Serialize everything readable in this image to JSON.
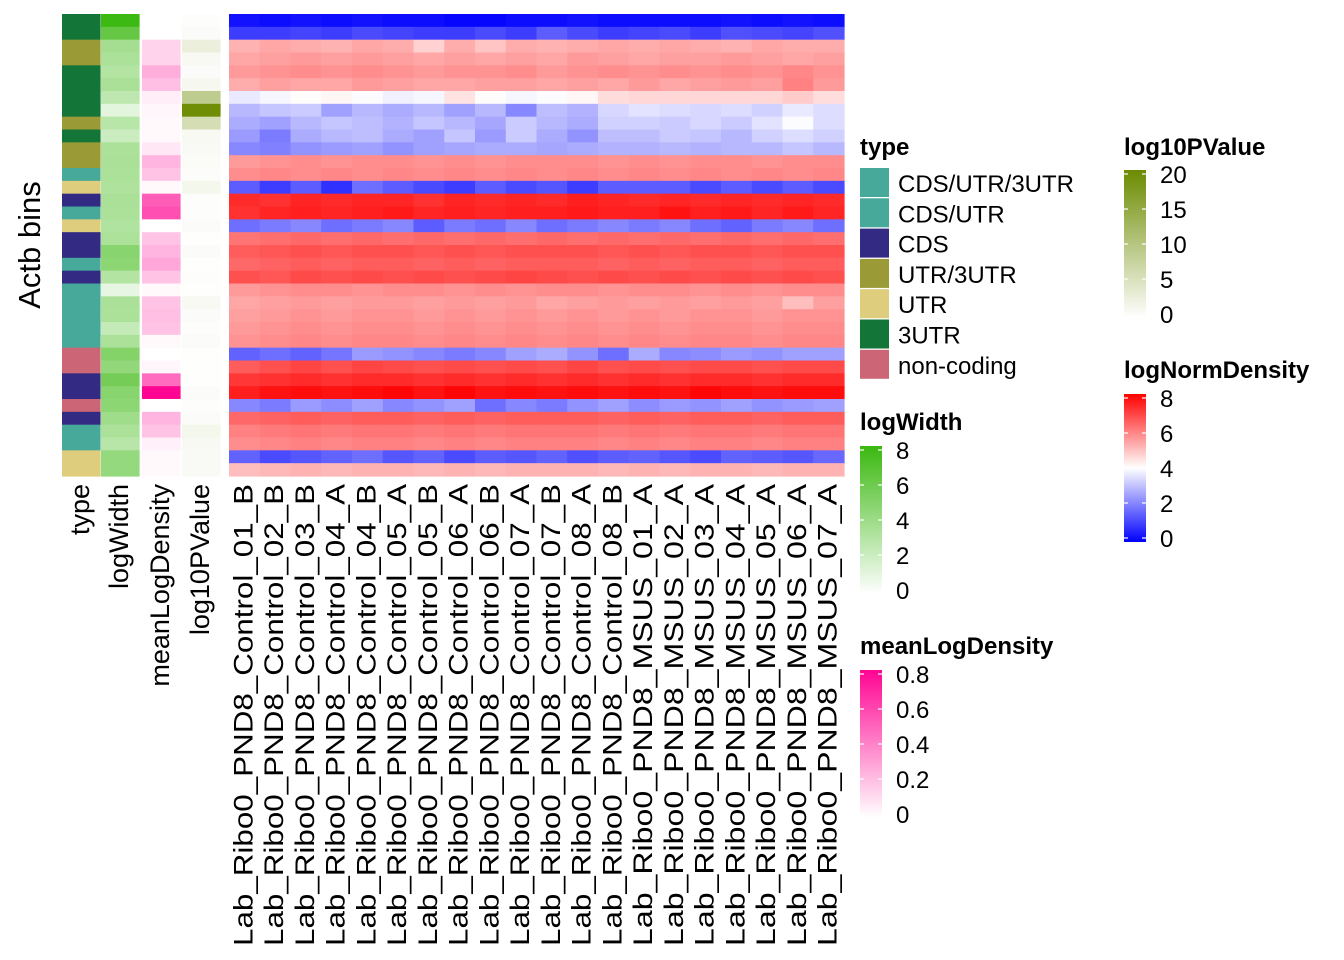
{
  "chart_data": {
    "type": "heatmap",
    "ylabel": "Actb bins",
    "annotation_columns": [
      "type",
      "logWidth",
      "meanLogDensity",
      "log10PValue"
    ],
    "sample_columns": [
      "Lab_Ribo0_PND8_Control_01_B",
      "Lab_Ribo0_PND8_Control_02_B",
      "Lab_Ribo0_PND8_Control_03_B",
      "Lab_Ribo0_PND8_Control_04_A",
      "Lab_Ribo0_PND8_Control_04_B",
      "Lab_Ribo0_PND8_Control_05_A",
      "Lab_Ribo0_PND8_Control_05_B",
      "Lab_Ribo0_PND8_Control_06_A",
      "Lab_Ribo0_PND8_Control_06_B",
      "Lab_Ribo0_PND8_Control_07_A",
      "Lab_Ribo0_PND8_Control_07_B",
      "Lab_Ribo0_PND8_Control_08_A",
      "Lab_Ribo0_PND8_Control_08_B",
      "Lab_Ribo0_PND8_MSUS_01_A",
      "Lab_Ribo0_PND8_MSUS_02_A",
      "Lab_Ribo0_PND8_MSUS_03_A",
      "Lab_Ribo0_PND8_MSUS_04_A",
      "Lab_Ribo0_PND8_MSUS_05_A",
      "Lab_Ribo0_PND8_MSUS_06_A",
      "Lab_Ribo0_PND8_MSUS_07_A"
    ],
    "type_categories": [
      "CDS/UTR/3UTR",
      "CDS/UTR",
      "CDS",
      "UTR/3UTR",
      "UTR",
      "3UTR",
      "non-coding"
    ],
    "rows": [
      {
        "type": "3UTR",
        "logWidth": 8.2,
        "meanLogDensity": 0.0,
        "log10PValue": 0.3,
        "values": [
          0.3,
          0.2,
          0.3,
          0.2,
          0.3,
          0.2,
          0.2,
          0.1,
          0.1,
          0.2,
          0.2,
          0.3,
          0.2,
          0.2,
          0.2,
          0.2,
          0.3,
          0.2,
          0.3,
          0.2
        ]
      },
      {
        "type": "3UTR",
        "logWidth": 6.5,
        "meanLogDensity": 0.0,
        "log10PValue": 0.5,
        "values": [
          1.0,
          1.0,
          1.1,
          1.0,
          1.2,
          1.1,
          1.0,
          1.0,
          1.2,
          1.0,
          1.5,
          1.2,
          1.0,
          1.1,
          1.2,
          1.0,
          1.3,
          1.2,
          1.1,
          1.3
        ]
      },
      {
        "type": "UTR/3UTR",
        "logWidth": 3.8,
        "meanLogDensity": 0.15,
        "log10PValue": 2.8,
        "values": [
          5.4,
          5.6,
          5.5,
          5.4,
          5.6,
          5.5,
          4.9,
          5.5,
          5.1,
          5.5,
          5.4,
          5.5,
          5.6,
          5.5,
          5.6,
          5.5,
          5.4,
          5.6,
          5.5,
          5.5
        ]
      },
      {
        "type": "UTR/3UTR",
        "logWidth": 3.5,
        "meanLogDensity": 0.15,
        "log10PValue": 1.0,
        "values": [
          5.6,
          5.7,
          5.8,
          5.7,
          5.8,
          5.7,
          5.6,
          5.7,
          5.6,
          5.7,
          5.6,
          5.8,
          5.7,
          5.6,
          5.7,
          5.7,
          5.8,
          5.7,
          5.6,
          5.7
        ]
      },
      {
        "type": "3UTR",
        "logWidth": 3.2,
        "meanLogDensity": 0.28,
        "log10PValue": 0.5,
        "values": [
          5.8,
          5.9,
          6.0,
          5.9,
          6.0,
          5.9,
          5.8,
          5.9,
          5.9,
          6.0,
          5.8,
          5.9,
          6.0,
          5.9,
          6.0,
          5.9,
          6.0,
          5.9,
          6.1,
          5.9
        ]
      },
      {
        "type": "3UTR",
        "logWidth": 3.6,
        "meanLogDensity": 0.22,
        "log10PValue": 1.2,
        "values": [
          5.5,
          5.7,
          5.6,
          5.6,
          5.8,
          5.7,
          5.6,
          5.6,
          5.7,
          5.7,
          5.6,
          5.7,
          5.6,
          5.8,
          5.6,
          5.7,
          5.8,
          5.7,
          6.2,
          5.8
        ]
      },
      {
        "type": "3UTR",
        "logWidth": 2.8,
        "meanLogDensity": 0.06,
        "log10PValue": 9.0,
        "values": [
          3.8,
          4.0,
          4.2,
          4.3,
          4.1,
          3.9,
          4.0,
          4.6,
          4.2,
          4.0,
          4.1,
          4.3,
          4.7,
          4.8,
          4.8,
          4.8,
          4.8,
          4.8,
          5.0,
          4.7
        ]
      },
      {
        "type": "3UTR",
        "logWidth": 1.2,
        "meanLogDensity": 0.03,
        "log10PValue": 20.0,
        "values": [
          3.0,
          3.2,
          3.3,
          2.6,
          3.0,
          2.8,
          3.0,
          2.6,
          3.0,
          2.2,
          3.1,
          2.9,
          3.5,
          3.7,
          3.6,
          3.5,
          3.6,
          3.4,
          3.8,
          3.6
        ]
      },
      {
        "type": "UTR/3UTR",
        "logWidth": 3.0,
        "meanLogDensity": 0.02,
        "log10PValue": 6.0,
        "values": [
          2.8,
          2.6,
          3.0,
          3.2,
          3.1,
          2.9,
          3.2,
          3.0,
          2.7,
          3.3,
          3.0,
          2.8,
          3.4,
          3.4,
          3.3,
          3.5,
          3.3,
          3.7,
          4.1,
          3.6
        ]
      },
      {
        "type": "3UTR",
        "logWidth": 2.2,
        "meanLogDensity": 0.02,
        "log10PValue": 1.0,
        "values": [
          2.5,
          2.0,
          2.8,
          3.0,
          3.1,
          2.8,
          2.6,
          3.2,
          2.5,
          3.3,
          2.8,
          2.4,
          3.1,
          3.1,
          3.3,
          3.2,
          3.0,
          3.4,
          3.6,
          3.4
        ]
      },
      {
        "type": "UTR/3UTR",
        "logWidth": 3.5,
        "meanLogDensity": 0.08,
        "log10PValue": 0.8,
        "values": [
          2.2,
          2.1,
          2.4,
          2.5,
          2.6,
          2.4,
          2.6,
          2.7,
          2.8,
          2.8,
          2.7,
          2.8,
          2.9,
          2.9,
          3.0,
          2.9,
          3.0,
          3.0,
          3.2,
          3.0
        ]
      },
      {
        "type": "UTR/3UTR",
        "logWidth": 3.6,
        "meanLogDensity": 0.25,
        "log10PValue": 0.6,
        "values": [
          5.8,
          5.9,
          6.0,
          5.9,
          6.0,
          6.0,
          5.9,
          6.0,
          5.9,
          6.0,
          6.0,
          6.0,
          5.9,
          6.0,
          5.9,
          6.0,
          6.0,
          5.9,
          6.0,
          6.0
        ]
      },
      {
        "type": "CDS/UTR",
        "logWidth": 3.5,
        "meanLogDensity": 0.2,
        "log10PValue": 0.4,
        "values": [
          6.0,
          6.1,
          6.0,
          6.1,
          6.0,
          6.1,
          6.0,
          6.1,
          6.0,
          6.1,
          6.0,
          6.1,
          6.0,
          6.1,
          6.0,
          6.1,
          6.0,
          6.1,
          6.0,
          6.1
        ]
      },
      {
        "type": "UTR",
        "logWidth": 3.4,
        "meanLogDensity": 0.02,
        "log10PValue": 1.5,
        "values": [
          1.5,
          1.0,
          1.5,
          0.8,
          1.8,
          1.5,
          1.2,
          1.0,
          1.5,
          1.2,
          1.4,
          1.0,
          1.5,
          1.5,
          1.5,
          1.2,
          1.5,
          1.2,
          1.5,
          1.2
        ]
      },
      {
        "type": "CDS",
        "logWidth": 3.6,
        "meanLogDensity": 0.55,
        "log10PValue": 0.3,
        "values": [
          7.6,
          7.5,
          7.7,
          7.6,
          7.7,
          7.7,
          7.5,
          7.7,
          7.6,
          7.7,
          7.6,
          7.8,
          7.7,
          7.6,
          7.7,
          7.6,
          7.7,
          7.6,
          7.7,
          7.6
        ]
      },
      {
        "type": "CDS/UTR",
        "logWidth": 3.5,
        "meanLogDensity": 0.6,
        "log10PValue": 0.3,
        "values": [
          7.5,
          7.7,
          7.8,
          7.7,
          7.8,
          7.9,
          7.7,
          7.8,
          7.7,
          7.8,
          7.8,
          7.9,
          7.8,
          7.8,
          8.0,
          7.8,
          7.9,
          7.7,
          7.9,
          7.7
        ]
      },
      {
        "type": "UTR",
        "logWidth": 3.3,
        "meanLogDensity": 0.0,
        "log10PValue": 0.5,
        "values": [
          1.8,
          2.0,
          2.2,
          1.8,
          2.0,
          2.2,
          1.5,
          2.0,
          1.8,
          2.2,
          1.8,
          2.0,
          2.2,
          2.0,
          2.2,
          1.8,
          1.6,
          2.0,
          2.2,
          1.8
        ]
      },
      {
        "type": "CDS",
        "logWidth": 3.5,
        "meanLogDensity": 0.2,
        "log10PValue": 0.2,
        "values": [
          6.4,
          6.5,
          6.6,
          6.5,
          6.6,
          6.5,
          6.6,
          6.5,
          6.6,
          6.5,
          6.6,
          6.5,
          6.6,
          6.5,
          6.6,
          6.5,
          6.6,
          6.5,
          6.6,
          6.5
        ]
      },
      {
        "type": "CDS",
        "logWidth": 5.0,
        "meanLogDensity": 0.25,
        "log10PValue": 0.5,
        "values": [
          6.8,
          6.9,
          7.0,
          6.9,
          7.0,
          7.0,
          6.9,
          7.0,
          6.9,
          7.0,
          7.0,
          7.0,
          6.9,
          7.0,
          6.9,
          7.0,
          7.0,
          6.9,
          7.0,
          7.0
        ]
      },
      {
        "type": "CDS/UTR/3UTR",
        "logWidth": 4.8,
        "meanLogDensity": 0.3,
        "log10PValue": 0.2,
        "values": [
          6.6,
          6.7,
          6.8,
          6.7,
          6.8,
          6.8,
          6.7,
          6.8,
          6.7,
          6.8,
          6.8,
          6.8,
          6.7,
          6.8,
          6.7,
          6.8,
          6.8,
          6.7,
          6.8,
          6.8
        ]
      },
      {
        "type": "CDS",
        "logWidth": 3.2,
        "meanLogDensity": 0.2,
        "log10PValue": 0.3,
        "values": [
          7.0,
          6.9,
          7.1,
          7.0,
          7.1,
          7.0,
          7.1,
          7.0,
          7.1,
          7.2,
          7.1,
          7.0,
          7.1,
          7.0,
          7.1,
          7.0,
          7.1,
          7.0,
          7.1,
          7.0
        ]
      },
      {
        "type": "CDS/UTR/3UTR",
        "logWidth": 1.0,
        "meanLogDensity": 0.02,
        "log10PValue": 0.2,
        "values": [
          5.8,
          5.9,
          6.0,
          6.0,
          5.9,
          6.0,
          6.0,
          5.9,
          6.0,
          5.9,
          6.0,
          6.0,
          5.9,
          6.0,
          6.0,
          5.9,
          6.0,
          5.9,
          6.0,
          6.0
        ]
      },
      {
        "type": "CDS/UTR/3UTR",
        "logWidth": 3.6,
        "meanLogDensity": 0.2,
        "log10PValue": 1.0,
        "values": [
          5.6,
          5.7,
          5.8,
          5.7,
          5.8,
          5.8,
          5.7,
          5.8,
          5.7,
          5.8,
          5.6,
          5.7,
          5.8,
          5.7,
          5.8,
          5.7,
          5.8,
          5.7,
          5.2,
          5.7
        ]
      },
      {
        "type": "CDS/UTR/3UTR",
        "logWidth": 3.5,
        "meanLogDensity": 0.22,
        "log10PValue": 0.5,
        "values": [
          5.7,
          5.8,
          5.9,
          5.8,
          5.9,
          5.9,
          5.8,
          5.9,
          5.8,
          5.9,
          5.8,
          5.9,
          5.8,
          5.9,
          5.8,
          5.9,
          5.9,
          5.8,
          5.9,
          5.9
        ]
      },
      {
        "type": "CDS/UTR/3UTR",
        "logWidth": 2.5,
        "meanLogDensity": 0.2,
        "log10PValue": 0.3,
        "values": [
          5.8,
          5.9,
          6.0,
          5.9,
          6.0,
          6.0,
          5.9,
          6.0,
          5.9,
          6.0,
          5.9,
          6.0,
          5.9,
          6.0,
          5.9,
          6.0,
          6.0,
          5.9,
          6.0,
          6.0
        ]
      },
      {
        "type": "CDS/UTR/3UTR",
        "logWidth": 3.5,
        "meanLogDensity": 0.02,
        "log10PValue": 0.5,
        "values": [
          5.9,
          6.0,
          6.1,
          6.0,
          6.1,
          6.1,
          6.0,
          6.1,
          6.0,
          6.1,
          6.0,
          6.1,
          6.0,
          6.1,
          6.0,
          6.1,
          6.1,
          6.0,
          6.1,
          6.1
        ]
      },
      {
        "type": "non-coding",
        "logWidth": 5.2,
        "meanLogDensity": 0.0,
        "log10PValue": 0.2,
        "values": [
          1.6,
          1.8,
          1.6,
          1.9,
          2.5,
          2.4,
          2.2,
          2.0,
          2.2,
          2.6,
          2.8,
          2.4,
          1.8,
          2.8,
          2.2,
          2.3,
          2.5,
          2.4,
          2.6,
          2.6
        ]
      },
      {
        "type": "non-coding",
        "logWidth": 4.6,
        "meanLogDensity": 0.03,
        "log10PValue": 0.2,
        "values": [
          6.8,
          7.0,
          7.2,
          7.0,
          7.2,
          7.1,
          7.0,
          7.1,
          7.0,
          7.1,
          7.0,
          7.2,
          7.0,
          7.1,
          7.0,
          7.1,
          7.1,
          7.0,
          7.1,
          7.1
        ]
      },
      {
        "type": "CDS",
        "logWidth": 5.8,
        "meanLogDensity": 0.5,
        "log10PValue": 0.2,
        "values": [
          7.4,
          7.5,
          7.6,
          7.5,
          7.6,
          7.6,
          7.5,
          7.6,
          7.5,
          7.6,
          7.5,
          7.6,
          7.5,
          7.6,
          7.5,
          7.6,
          7.6,
          7.5,
          7.6,
          7.6
        ]
      },
      {
        "type": "CDS",
        "logWidth": 5.0,
        "meanLogDensity": 0.85,
        "log10PValue": 0.5,
        "values": [
          7.8,
          8.0,
          8.1,
          8.0,
          8.1,
          8.2,
          8.0,
          8.2,
          8.0,
          8.1,
          8.0,
          8.1,
          8.0,
          8.1,
          8.0,
          8.2,
          8.1,
          8.0,
          8.1,
          8.1
        ]
      },
      {
        "type": "non-coding",
        "logWidth": 4.8,
        "meanLogDensity": 0.0,
        "log10PValue": 0.3,
        "values": [
          2.2,
          2.0,
          2.5,
          2.3,
          2.6,
          2.2,
          2.4,
          2.6,
          1.8,
          2.2,
          2.0,
          2.4,
          2.6,
          2.3,
          2.5,
          2.4,
          2.6,
          2.4,
          2.5,
          2.6
        ]
      },
      {
        "type": "CDS",
        "logWidth": 4.0,
        "meanLogDensity": 0.25,
        "log10PValue": 0.5,
        "values": [
          6.6,
          6.7,
          6.8,
          6.7,
          6.8,
          6.8,
          6.7,
          6.8,
          6.7,
          6.8,
          6.8,
          6.8,
          6.7,
          6.8,
          6.7,
          6.8,
          6.8,
          6.7,
          6.8,
          6.8
        ]
      },
      {
        "type": "CDS/UTR",
        "logWidth": 3.5,
        "meanLogDensity": 0.2,
        "log10PValue": 1.5,
        "values": [
          6.2,
          6.3,
          6.4,
          6.3,
          6.4,
          6.4,
          6.3,
          6.4,
          6.3,
          6.4,
          6.4,
          6.4,
          6.3,
          6.4,
          6.3,
          6.4,
          6.4,
          6.3,
          6.4,
          6.4
        ]
      },
      {
        "type": "CDS/UTR",
        "logWidth": 3.0,
        "meanLogDensity": 0.05,
        "log10PValue": 1.0,
        "values": [
          6.0,
          6.1,
          6.2,
          6.1,
          6.2,
          6.2,
          6.1,
          6.2,
          6.1,
          6.2,
          6.2,
          6.2,
          6.1,
          6.2,
          6.1,
          6.2,
          6.2,
          6.1,
          6.2,
          6.2
        ]
      },
      {
        "type": "UTR",
        "logWidth": 4.5,
        "meanLogDensity": 0.02,
        "log10PValue": 0.8,
        "values": [
          1.6,
          1.2,
          1.4,
          1.6,
          1.8,
          1.4,
          1.6,
          1.2,
          1.5,
          1.4,
          1.6,
          1.3,
          1.5,
          1.6,
          1.4,
          1.2,
          1.6,
          1.5,
          1.4,
          1.7
        ]
      },
      {
        "type": "UTR",
        "logWidth": 4.5,
        "meanLogDensity": 0.02,
        "log10PValue": 0.8,
        "values": [
          5.2,
          5.3,
          5.4,
          5.3,
          5.4,
          5.4,
          5.3,
          5.4,
          5.3,
          5.4,
          5.4,
          5.4,
          5.3,
          5.4,
          5.3,
          5.4,
          5.4,
          5.3,
          5.4,
          5.4
        ]
      }
    ],
    "legends": {
      "type": {
        "title": "type",
        "items": [
          {
            "label": "CDS/UTR/3UTR",
            "color": "#46A99A"
          },
          {
            "label": "CDS/UTR",
            "color": "#46A99A"
          },
          {
            "label": "CDS",
            "color": "#332A84"
          },
          {
            "label": "UTR/3UTR",
            "color": "#9A9A36"
          },
          {
            "label": "UTR",
            "color": "#DDCD7C"
          },
          {
            "label": "3UTR",
            "color": "#137638"
          },
          {
            "label": "non-coding",
            "color": "#CC6677"
          }
        ]
      },
      "logWidth": {
        "title": "logWidth",
        "ticks": [
          "8",
          "6",
          "4",
          "2",
          "0"
        ],
        "min": 0,
        "max": 8.3,
        "low_color": "#FFFFFF",
        "high_color": "#3AB80F"
      },
      "meanLogDensity": {
        "title": "meanLogDensity",
        "ticks": [
          "0.8",
          "0.6",
          "0.4",
          "0.2",
          "0"
        ],
        "min": 0,
        "max": 0.85,
        "low_color": "#FFFFFF",
        "high_color": "#FF0592"
      },
      "log10PValue": {
        "title": "log10PValue",
        "ticks": [
          "20",
          "15",
          "10",
          "5",
          "0"
        ],
        "min": 0,
        "max": 20.5,
        "low_color": "#FFFFFF",
        "high_color": "#6B8B00"
      },
      "logNormDensity": {
        "title": "logNormDensity",
        "ticks": [
          "8",
          "6",
          "4",
          "2",
          "0"
        ],
        "min": 0,
        "max": 8.3,
        "low_color": "#0000FF",
        "mid_color": "#FFFFFF",
        "high_color": "#FF0000",
        "mid_value": 4.15
      }
    }
  }
}
